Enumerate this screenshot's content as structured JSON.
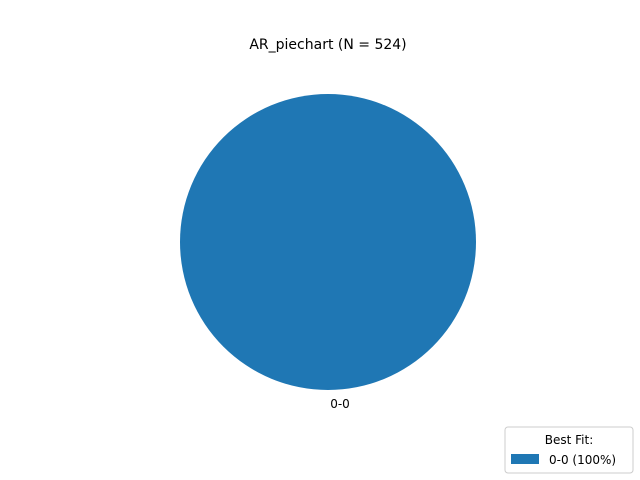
{
  "chart_data": {
    "type": "pie",
    "title": "AR_piechart (N = 524)",
    "slices": [
      {
        "label": "0-0",
        "value": 524,
        "percent": 100,
        "color": "#1f77b4"
      }
    ],
    "legend": {
      "title": "Best Fit:",
      "entries": [
        {
          "label": "0-0 (100%)",
          "color": "#1f77b4"
        }
      ],
      "placement": "lower-right"
    }
  }
}
